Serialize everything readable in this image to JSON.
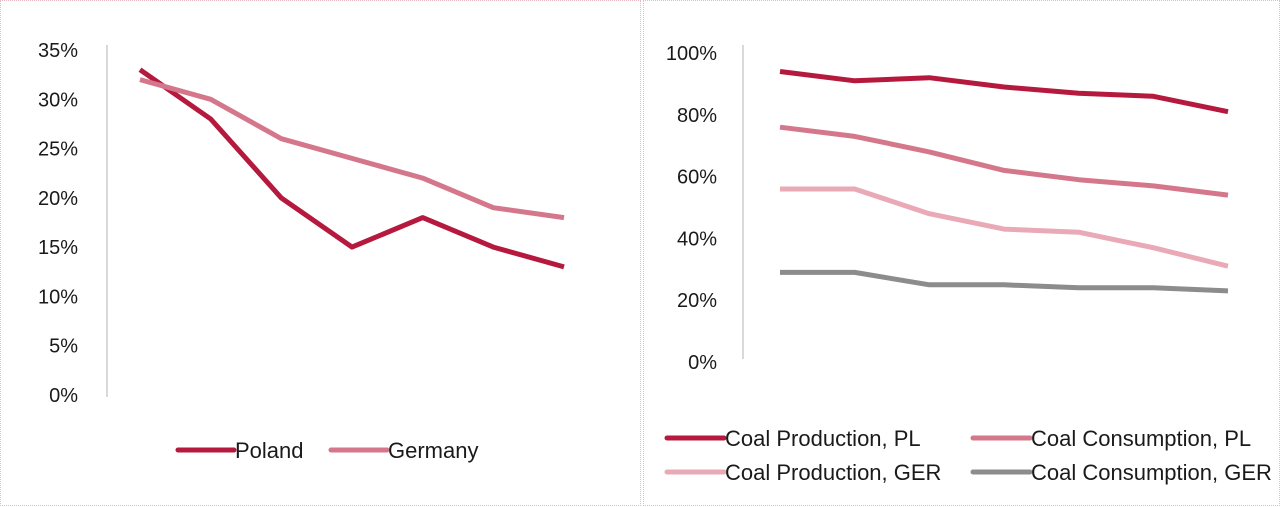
{
  "chart_data": [
    {
      "type": "line",
      "title": "",
      "xlabel": "",
      "ylabel": "",
      "ylim": [
        0,
        35
      ],
      "yticks": [
        "0%",
        "5%",
        "10%",
        "15%",
        "20%",
        "25%",
        "30%",
        "35%"
      ],
      "x": [
        1,
        2,
        3,
        4,
        5,
        6,
        7
      ],
      "grid": false,
      "legend_position": "bottom",
      "series": [
        {
          "name": "Poland",
          "color": "#b5193e",
          "values": [
            33,
            28,
            20,
            15,
            18,
            15,
            13
          ]
        },
        {
          "name": "Germany",
          "color": "#d4778b",
          "values": [
            32,
            30,
            26,
            24,
            22,
            19,
            18
          ]
        }
      ]
    },
    {
      "type": "line",
      "title": "",
      "xlabel": "",
      "ylabel": "",
      "ylim": [
        0,
        100
      ],
      "yticks": [
        "0%",
        "20%",
        "40%",
        "60%",
        "80%",
        "100%"
      ],
      "x": [
        1,
        2,
        3,
        4,
        5,
        6,
        7
      ],
      "grid": false,
      "legend_position": "bottom",
      "series": [
        {
          "name": "Coal Production, PL",
          "color": "#b5193e",
          "values": [
            94,
            91,
            92,
            89,
            87,
            86,
            81
          ]
        },
        {
          "name": "Coal Consumption, PL",
          "color": "#d4778b",
          "values": [
            76,
            73,
            68,
            62,
            59,
            57,
            54
          ]
        },
        {
          "name": "Coal Production, GER",
          "color": "#e9a9b7",
          "values": [
            56,
            56,
            48,
            43,
            42,
            37,
            31
          ]
        },
        {
          "name": "Coal Consumption, GER",
          "color": "#8c8c8c",
          "values": [
            29,
            29,
            25,
            25,
            24,
            24,
            23
          ]
        }
      ]
    }
  ]
}
